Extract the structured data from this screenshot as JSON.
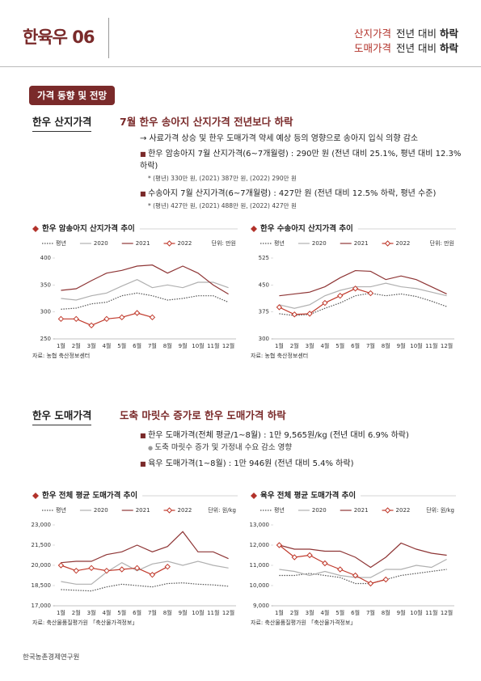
{
  "header": {
    "title": "한육우 06",
    "lines": [
      {
        "label": "산지가격",
        "text": "전년 대비",
        "trend": "하락"
      },
      {
        "label": "도매가격",
        "text": "전년 대비",
        "trend": "하락"
      }
    ]
  },
  "section": "가격 동향 및 전망",
  "blocks": [
    {
      "label": "한우 산지가격",
      "headline": "7월 한우 송아지 산지가격 전년보다 하락",
      "arrow": "→ 사료가격 상승 및 한우 도매가격 약세 예상 등의 영향으로 송아지 입식 의향 감소",
      "bullets": [
        {
          "text": "한우 암송아지 7월 산지가격(6~7개월령) : 290만 원 (전년 대비 25.1%, 평년 대비 12.3% 하락)",
          "note": "* (평년) 330만 원, (2021) 387만 원, (2022) 290만 원"
        },
        {
          "text": "수송아지 7월 산지가격(6~7개월령) : 427만 원 (전년 대비 12.5% 하락, 평년 수준)",
          "note": "* (평년) 427만 원, (2021) 488만 원, (2022) 427만 원"
        }
      ]
    },
    {
      "label": "한우 도매가격",
      "headline": "도축 마릿수 증가로 한우 도매가격 하락",
      "bullets": [
        {
          "text": "한우 도매가격(전체 평균/1~8월) : 1만 9,565원/kg (전년 대비 6.9% 하락)",
          "note": "도축 마릿수 증가 및 가정내 수요 감소 영향"
        },
        {
          "text": "육우 도매가격(1~8월) : 1만 946원 (전년 대비 5.4% 하락)"
        }
      ]
    }
  ],
  "charts": [
    {
      "type": "line",
      "title": "한우 암송아지 산지가격 추이",
      "unit": "단위: 만원",
      "source": "자료: 농협 축산정보센터",
      "categories": [
        "1월",
        "2월",
        "3월",
        "4월",
        "5월",
        "6월",
        "7월",
        "8월",
        "9월",
        "10월",
        "11월",
        "12월"
      ],
      "ylim": [
        250,
        400
      ],
      "yticks": [
        250,
        300,
        350,
        400
      ],
      "series": [
        {
          "name": "평년",
          "color": "#555555",
          "style": "dotted",
          "values": [
            305,
            307,
            315,
            318,
            330,
            335,
            330,
            322,
            325,
            330,
            330,
            318
          ]
        },
        {
          "name": "2020",
          "color": "#b0b0b0",
          "style": "solid",
          "values": [
            325,
            322,
            330,
            335,
            348,
            360,
            345,
            350,
            345,
            355,
            355,
            345
          ]
        },
        {
          "name": "2021",
          "color": "#8e3535",
          "style": "solid",
          "values": [
            340,
            343,
            358,
            372,
            377,
            385,
            387,
            372,
            385,
            372,
            350,
            333
          ]
        },
        {
          "name": "2022",
          "color": "#c0392b",
          "style": "solid",
          "markers": true,
          "values": [
            287,
            287,
            275,
            287,
            290,
            298,
            290,
            null,
            null,
            null,
            null,
            null
          ]
        }
      ]
    },
    {
      "type": "line",
      "title": "한우 수송아지 산지가격 추이",
      "unit": "단위: 만원",
      "source": "자료: 농협 축산정보센터",
      "categories": [
        "1월",
        "2월",
        "3월",
        "4월",
        "5월",
        "6월",
        "7월",
        "8월",
        "9월",
        "10월",
        "11월",
        "12월"
      ],
      "ylim": [
        300,
        525
      ],
      "yticks": [
        300,
        375,
        450,
        525
      ],
      "series": [
        {
          "name": "평년",
          "color": "#555555",
          "style": "dotted",
          "values": [
            370,
            365,
            368,
            385,
            400,
            420,
            427,
            420,
            425,
            418,
            405,
            390
          ]
        },
        {
          "name": "2020",
          "color": "#b0b0b0",
          "style": "solid",
          "values": [
            395,
            385,
            395,
            420,
            435,
            445,
            445,
            455,
            445,
            440,
            430,
            420
          ]
        },
        {
          "name": "2021",
          "color": "#8e3535",
          "style": "solid",
          "values": [
            420,
            425,
            430,
            445,
            470,
            490,
            488,
            465,
            475,
            465,
            445,
            425
          ]
        },
        {
          "name": "2022",
          "color": "#c0392b",
          "style": "solid",
          "markers": true,
          "values": [
            388,
            368,
            370,
            400,
            420,
            440,
            427,
            null,
            null,
            null,
            null,
            null
          ]
        }
      ]
    },
    {
      "type": "line",
      "title": "한우 전체 평균 도매가격 추이",
      "unit": "단위: 원/kg",
      "source": "자료: 축산물품질평가원 「축산물가격정보」",
      "categories": [
        "1월",
        "2월",
        "3월",
        "4월",
        "5월",
        "6월",
        "7월",
        "8월",
        "9월",
        "10월",
        "11월",
        "12월"
      ],
      "ylim": [
        17000,
        23000
      ],
      "yticks": [
        {
          "value": 17000,
          "label": "17,000"
        },
        {
          "value": 18500,
          "label": "18,500"
        },
        {
          "value": 20000,
          "label": "20,000"
        },
        {
          "value": 21500,
          "label": "21,500"
        },
        {
          "value": 23000,
          "label": "23,000"
        }
      ],
      "series": [
        {
          "name": "평년",
          "color": "#555555",
          "style": "dotted",
          "values": [
            18200,
            18150,
            18100,
            18400,
            18600,
            18500,
            18400,
            18650,
            18700,
            18600,
            18550,
            18450
          ]
        },
        {
          "name": "2020",
          "color": "#b0b0b0",
          "style": "solid",
          "values": [
            18800,
            18600,
            18600,
            19500,
            20200,
            19600,
            20100,
            20300,
            20000,
            20300,
            20000,
            19800
          ]
        },
        {
          "name": "2021",
          "color": "#8e3535",
          "style": "solid",
          "values": [
            20200,
            20300,
            20300,
            20800,
            21000,
            21500,
            21000,
            21400,
            22500,
            21000,
            21000,
            20500
          ]
        },
        {
          "name": "2022",
          "color": "#c0392b",
          "style": "solid",
          "markers": true,
          "values": [
            20000,
            19600,
            19800,
            19600,
            19700,
            19800,
            19300,
            19900,
            null,
            null,
            null,
            null
          ]
        }
      ]
    },
    {
      "type": "line",
      "title": "육우 전체 평균 도매가격 추이",
      "unit": "단위: 원/kg",
      "source": "자료: 축산물품질평가원 「축산물가격정보」",
      "categories": [
        "1월",
        "2월",
        "3월",
        "4월",
        "5월",
        "6월",
        "7월",
        "8월",
        "9월",
        "10월",
        "11월",
        "12월"
      ],
      "ylim": [
        9000,
        13000
      ],
      "yticks": [
        {
          "value": 9000,
          "label": "9,000"
        },
        {
          "value": 10000,
          "label": "10,000"
        },
        {
          "value": 11000,
          "label": "11,000"
        },
        {
          "value": 12000,
          "label": "12,000"
        },
        {
          "value": 13000,
          "label": "13,000"
        }
      ],
      "series": [
        {
          "name": "평년",
          "color": "#555555",
          "style": "dotted",
          "values": [
            10500,
            10500,
            10600,
            10500,
            10400,
            10100,
            10100,
            10300,
            10500,
            10600,
            10700,
            10800
          ]
        },
        {
          "name": "2020",
          "color": "#b0b0b0",
          "style": "solid",
          "values": [
            10800,
            10700,
            10500,
            10700,
            10500,
            10400,
            10400,
            10800,
            10800,
            11000,
            10900,
            11300
          ]
        },
        {
          "name": "2021",
          "color": "#8e3535",
          "style": "solid",
          "values": [
            12000,
            11800,
            11800,
            11700,
            11700,
            11400,
            10900,
            11400,
            12100,
            11800,
            11600,
            11500
          ]
        },
        {
          "name": "2022",
          "color": "#c0392b",
          "style": "solid",
          "markers": true,
          "values": [
            12000,
            11400,
            11500,
            11100,
            10800,
            10500,
            10100,
            10300,
            null,
            null,
            null,
            null
          ]
        }
      ]
    }
  ],
  "footer": "한국농촌경제연구원"
}
